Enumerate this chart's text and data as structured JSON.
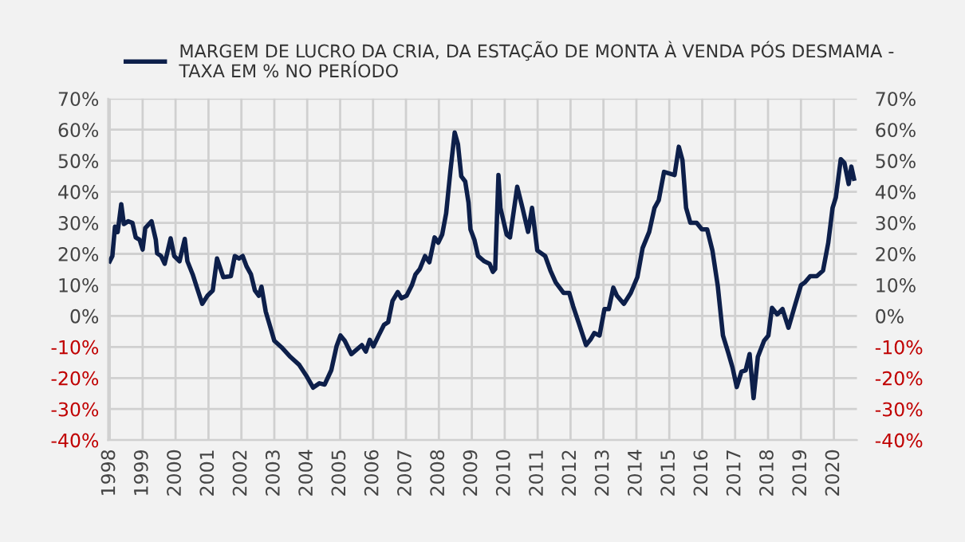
{
  "chart_data": {
    "type": "line",
    "series": [
      {
        "name": "MARGEM DE LUCRO DA CRIA, DA ESTAÇÃO DE MONTA À VENDA PÓS DESMAMA - TAXA EM % NO PERÍODO",
        "color": "#0d1f4a",
        "x": [
          1998.0,
          1998.08,
          1998.16,
          1998.24,
          1998.29,
          1998.35,
          1998.43,
          1998.56,
          1998.69,
          1998.79,
          1998.91,
          1999.0,
          1999.08,
          1999.27,
          1999.4,
          1999.44,
          1999.56,
          1999.67,
          1999.85,
          1999.96,
          2000.12,
          2000.28,
          2000.36,
          2000.52,
          2000.65,
          2000.81,
          2000.97,
          2001.13,
          2001.26,
          2001.45,
          2001.68,
          2001.8,
          2001.93,
          2002.04,
          2002.16,
          2002.29,
          2002.41,
          2002.53,
          2002.61,
          2002.74,
          2002.86,
          2003.0,
          2003.22,
          2003.49,
          2003.76,
          2003.97,
          2004.18,
          2004.37,
          2004.53,
          2004.73,
          2004.89,
          2005.01,
          2005.14,
          2005.34,
          2005.53,
          2005.66,
          2005.78,
          2005.9,
          2006.01,
          2006.17,
          2006.33,
          2006.46,
          2006.59,
          2006.75,
          2006.86,
          2007.02,
          2007.18,
          2007.29,
          2007.42,
          2007.58,
          2007.71,
          2007.87,
          2007.98,
          2008.1,
          2008.22,
          2008.35,
          2008.48,
          2008.58,
          2008.68,
          2008.8,
          2008.9,
          2008.96,
          2009.08,
          2009.19,
          2009.38,
          2009.54,
          2009.64,
          2009.71,
          2009.81,
          2009.87,
          2010.06,
          2010.16,
          2010.38,
          2010.54,
          2010.71,
          2010.83,
          2010.99,
          2011.23,
          2011.39,
          2011.55,
          2011.79,
          2011.96,
          2012.08,
          2012.24,
          2012.47,
          2012.6,
          2012.72,
          2012.88,
          2013.03,
          2013.16,
          2013.3,
          2013.41,
          2013.62,
          2013.83,
          2014.03,
          2014.19,
          2014.39,
          2014.55,
          2014.68,
          2014.84,
          2015.0,
          2015.16,
          2015.29,
          2015.4,
          2015.51,
          2015.64,
          2015.83,
          2015.99,
          2016.15,
          2016.31,
          2016.47,
          2016.63,
          2016.79,
          2016.92,
          2017.05,
          2017.19,
          2017.32,
          2017.44,
          2017.56,
          2017.69,
          2017.88,
          2018.01,
          2018.12,
          2018.28,
          2018.44,
          2018.62,
          2018.81,
          2019.0,
          2019.12,
          2019.28,
          2019.48,
          2019.67,
          2019.83,
          2019.96,
          2020.06,
          2020.21,
          2020.32,
          2020.45,
          2020.53,
          2020.61
        ],
        "values": [
          17.6,
          19.3,
          28.8,
          27,
          31,
          36,
          29.6,
          30.5,
          30,
          25.3,
          24.5,
          21.4,
          28.3,
          30.5,
          24.5,
          20.2,
          19.3,
          16.8,
          25,
          19.3,
          17.6,
          24.8,
          17.6,
          13.4,
          9.1,
          3.9,
          6.5,
          8.2,
          18.5,
          12.5,
          12.8,
          19.3,
          18.5,
          19.3,
          15.9,
          13.4,
          8.2,
          6.5,
          9.4,
          1.4,
          -2.9,
          -8,
          -10.1,
          -13.2,
          -15.8,
          -19.2,
          -23.1,
          -21.7,
          -22.1,
          -17.5,
          -9.8,
          -6.3,
          -8,
          -12.3,
          -10.6,
          -9.4,
          -11.5,
          -7.7,
          -9.8,
          -6.3,
          -2.9,
          -2,
          4.8,
          7.7,
          5.7,
          6.5,
          9.9,
          13.4,
          15.1,
          19.3,
          17.3,
          25.3,
          23.6,
          26.2,
          33,
          46.7,
          59.1,
          55.3,
          45,
          43.3,
          36.5,
          27.9,
          24.5,
          19.3,
          17.6,
          16.8,
          14.2,
          15.1,
          45.4,
          34.8,
          26.2,
          25.3,
          41.6,
          34.8,
          27.1,
          34.8,
          21.1,
          19.3,
          14.6,
          10.8,
          7.4,
          7.4,
          3.1,
          -2,
          -9.4,
          -7.7,
          -5.5,
          -6.3,
          2.2,
          2.2,
          9.1,
          6.5,
          3.9,
          7.4,
          12.5,
          21.9,
          27.1,
          34.8,
          37.3,
          46.4,
          45.9,
          45.4,
          54.5,
          50.2,
          34.8,
          30,
          30,
          27.9,
          27.9,
          21.1,
          9.9,
          -6.3,
          -11.8,
          -16.6,
          -22.9,
          -18,
          -17.5,
          -12.3,
          -26.5,
          -13.2,
          -8,
          -6.3,
          2.6,
          0.5,
          2.2,
          -3.8,
          3.1,
          9.9,
          10.8,
          12.8,
          12.8,
          14.6,
          23.6,
          34.8,
          38.2,
          50.5,
          49.3,
          42.5,
          48.1,
          44.2
        ]
      }
    ],
    "xlim": [
      1997.95,
      2020.7
    ],
    "xticks": [
      1998,
      1999,
      2000,
      2001,
      2002,
      2003,
      2004,
      2005,
      2006,
      2007,
      2008,
      2009,
      2010,
      2011,
      2012,
      2013,
      2014,
      2015,
      2016,
      2017,
      2018,
      2019,
      2020
    ],
    "ylim": [
      -40,
      70
    ],
    "yticks": [
      {
        "value": -40,
        "label": "-40%"
      },
      {
        "value": -30,
        "label": "-30%"
      },
      {
        "value": -20,
        "label": "-20%"
      },
      {
        "value": -10,
        "label": "-10%"
      },
      {
        "value": 0,
        "label": "0%"
      },
      {
        "value": 10,
        "label": "10%"
      },
      {
        "value": 20,
        "label": "20%"
      },
      {
        "value": 30,
        "label": "30%"
      },
      {
        "value": 40,
        "label": "40%"
      },
      {
        "value": 50,
        "label": "50%"
      },
      {
        "value": 60,
        "label": "60%"
      },
      {
        "value": 70,
        "label": "70%"
      }
    ],
    "y2lim": [
      -40,
      70
    ],
    "y2ticks": [
      {
        "value": -40,
        "label": "-40%"
      },
      {
        "value": -30,
        "label": "-30%"
      },
      {
        "value": -20,
        "label": "-20%"
      },
      {
        "value": -10,
        "label": "-10%"
      },
      {
        "value": 0,
        "label": "0%"
      },
      {
        "value": 10,
        "label": "10%"
      },
      {
        "value": 20,
        "label": "20%"
      },
      {
        "value": 30,
        "label": "30%"
      },
      {
        "value": 40,
        "label": "40%"
      },
      {
        "value": 50,
        "label": "50%"
      },
      {
        "value": 60,
        "label": "60%"
      },
      {
        "value": 70,
        "label": "70%"
      }
    ],
    "grid": true,
    "legend": "top",
    "line_style": "solid"
  }
}
